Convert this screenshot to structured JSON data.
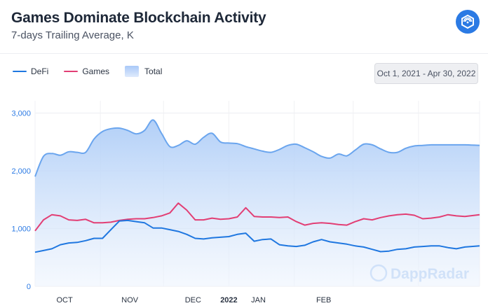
{
  "header": {
    "title": "Games Dominate Blockchain Activity",
    "subtitle": "7-days Trailing Average, K"
  },
  "legend": {
    "defi": "DeFi",
    "games": "Games",
    "total": "Total"
  },
  "date_range": "Oct 1, 2021 - Apr 30, 2022",
  "watermark": "DappRadar",
  "colors": {
    "defi": "#1f77e0",
    "games": "#e23e74",
    "total_line": "#6aa5ee",
    "total_fill_top": "#aecdf7",
    "axis_text": "#2b7ae4"
  },
  "chart_data": {
    "type": "line",
    "x": [
      "2021-10-01",
      "2021-10-05",
      "2021-10-09",
      "2021-10-13",
      "2021-10-17",
      "2021-10-21",
      "2021-10-25",
      "2021-10-29",
      "2021-11-02",
      "2021-11-06",
      "2021-11-10",
      "2021-11-14",
      "2021-11-18",
      "2021-11-22",
      "2021-11-26",
      "2021-11-30",
      "2021-12-04",
      "2021-12-08",
      "2021-12-12",
      "2021-12-16",
      "2021-12-20",
      "2021-12-24",
      "2021-12-28",
      "2022-01-01",
      "2022-01-05",
      "2022-01-09",
      "2022-01-13",
      "2022-01-17",
      "2022-01-21",
      "2022-01-25",
      "2022-01-29",
      "2022-02-02",
      "2022-02-06",
      "2022-02-10",
      "2022-02-14",
      "2022-02-18",
      "2022-02-22",
      "2022-02-26",
      "2022-03-02",
      "2022-03-06",
      "2022-03-10",
      "2022-03-14",
      "2022-03-18",
      "2022-03-22",
      "2022-03-26",
      "2022-03-30",
      "2022-04-03",
      "2022-04-07",
      "2022-04-11",
      "2022-04-15",
      "2022-04-19",
      "2022-04-23",
      "2022-04-30"
    ],
    "series": [
      {
        "name": "Total",
        "values": [
          1900,
          2250,
          2300,
          2270,
          2330,
          2320,
          2320,
          2550,
          2680,
          2730,
          2740,
          2700,
          2640,
          2700,
          2880,
          2650,
          2420,
          2440,
          2520,
          2460,
          2580,
          2650,
          2500,
          2480,
          2470,
          2420,
          2380,
          2340,
          2320,
          2370,
          2440,
          2460,
          2400,
          2330,
          2250,
          2220,
          2290,
          2260,
          2360,
          2460,
          2450,
          2380,
          2320,
          2320,
          2390,
          2430,
          2440,
          2450,
          2450,
          2450,
          2450,
          2450,
          2440
        ]
      },
      {
        "name": "Games",
        "values": [
          960,
          1150,
          1240,
          1220,
          1150,
          1140,
          1160,
          1100,
          1100,
          1110,
          1140,
          1160,
          1170,
          1170,
          1190,
          1220,
          1270,
          1440,
          1320,
          1150,
          1150,
          1180,
          1160,
          1170,
          1200,
          1360,
          1210,
          1200,
          1200,
          1190,
          1200,
          1120,
          1060,
          1090,
          1100,
          1090,
          1070,
          1060,
          1120,
          1170,
          1150,
          1190,
          1220,
          1240,
          1250,
          1230,
          1170,
          1180,
          1200,
          1240,
          1220,
          1210,
          1240
        ]
      },
      {
        "name": "DeFi",
        "values": [
          590,
          620,
          650,
          720,
          750,
          760,
          790,
          830,
          830,
          980,
          1130,
          1140,
          1120,
          1100,
          1010,
          1010,
          980,
          950,
          900,
          830,
          820,
          840,
          850,
          860,
          900,
          920,
          780,
          810,
          820,
          720,
          700,
          690,
          710,
          770,
          810,
          770,
          750,
          730,
          700,
          680,
          640,
          600,
          610,
          640,
          650,
          680,
          690,
          700,
          700,
          670,
          650,
          680,
          700
        ]
      }
    ],
    "xlabel": "",
    "ylabel": "",
    "ylim": [
      0,
      3000
    ],
    "yticks": [
      "0",
      "1,000",
      "2,000",
      "3,000"
    ],
    "xticks": [
      {
        "label": "OCT",
        "date": "2021-10-15",
        "bold": false
      },
      {
        "label": "NOV",
        "date": "2021-11-15",
        "bold": false
      },
      {
        "label": "DEC",
        "date": "2021-12-15",
        "bold": false
      },
      {
        "label": "2022",
        "date": "2022-01-01",
        "bold": true
      },
      {
        "label": "JAN",
        "date": "2022-01-15",
        "bold": false
      },
      {
        "label": "FEB",
        "date": "2022-02-15",
        "bold": false
      }
    ],
    "grid": true,
    "legend_position": "top-left"
  }
}
